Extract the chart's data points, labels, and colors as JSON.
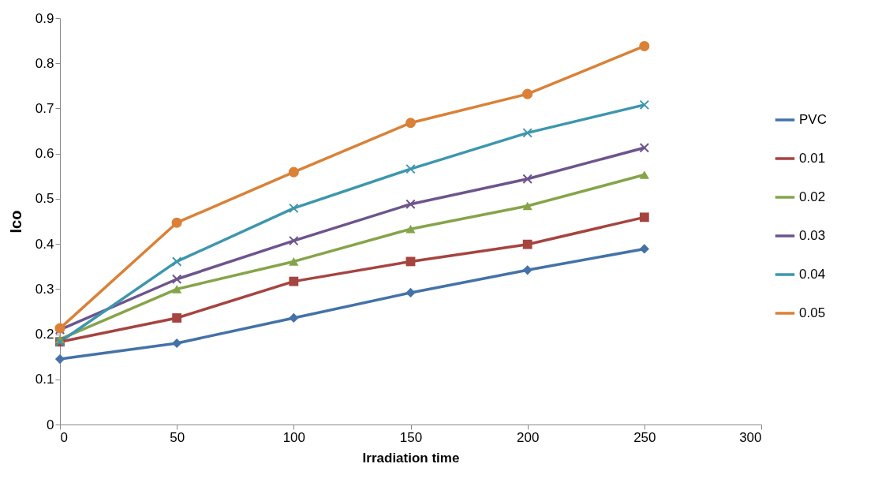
{
  "chart_data": {
    "type": "line",
    "xlabel": "Irradiation time",
    "ylabel": "Ico",
    "x": [
      0,
      50,
      100,
      150,
      200,
      250
    ],
    "xlim": [
      0,
      300
    ],
    "xticks": [
      0,
      50,
      100,
      150,
      200,
      250,
      300
    ],
    "ylim": [
      0,
      0.9
    ],
    "yticks": [
      0,
      0.1,
      0.2,
      0.3,
      0.4,
      0.5,
      0.6,
      0.7,
      0.8,
      0.9
    ],
    "grid": false,
    "legend": "right",
    "line_style": "solid",
    "series": [
      {
        "name": "PVC",
        "color": "#4472a8",
        "marker": "diamond",
        "values": [
          0.145,
          0.18,
          0.236,
          0.292,
          0.342,
          0.389
        ]
      },
      {
        "name": "0.01",
        "color": "#a64440",
        "marker": "square",
        "values": [
          0.183,
          0.236,
          0.317,
          0.361,
          0.399,
          0.459
        ]
      },
      {
        "name": "0.02",
        "color": "#86a44a",
        "marker": "triangle",
        "values": [
          0.189,
          0.3,
          0.361,
          0.433,
          0.484,
          0.553
        ]
      },
      {
        "name": "0.03",
        "color": "#6e548d",
        "marker": "cross",
        "values": [
          0.21,
          0.322,
          0.407,
          0.488,
          0.544,
          0.613
        ]
      },
      {
        "name": "0.04",
        "color": "#3d96ae",
        "marker": "cross",
        "values": [
          0.183,
          0.361,
          0.479,
          0.566,
          0.646,
          0.708
        ]
      },
      {
        "name": "0.05",
        "color": "#da8137",
        "marker": "circle",
        "values": [
          0.213,
          0.447,
          0.559,
          0.668,
          0.732,
          0.838
        ]
      }
    ]
  }
}
